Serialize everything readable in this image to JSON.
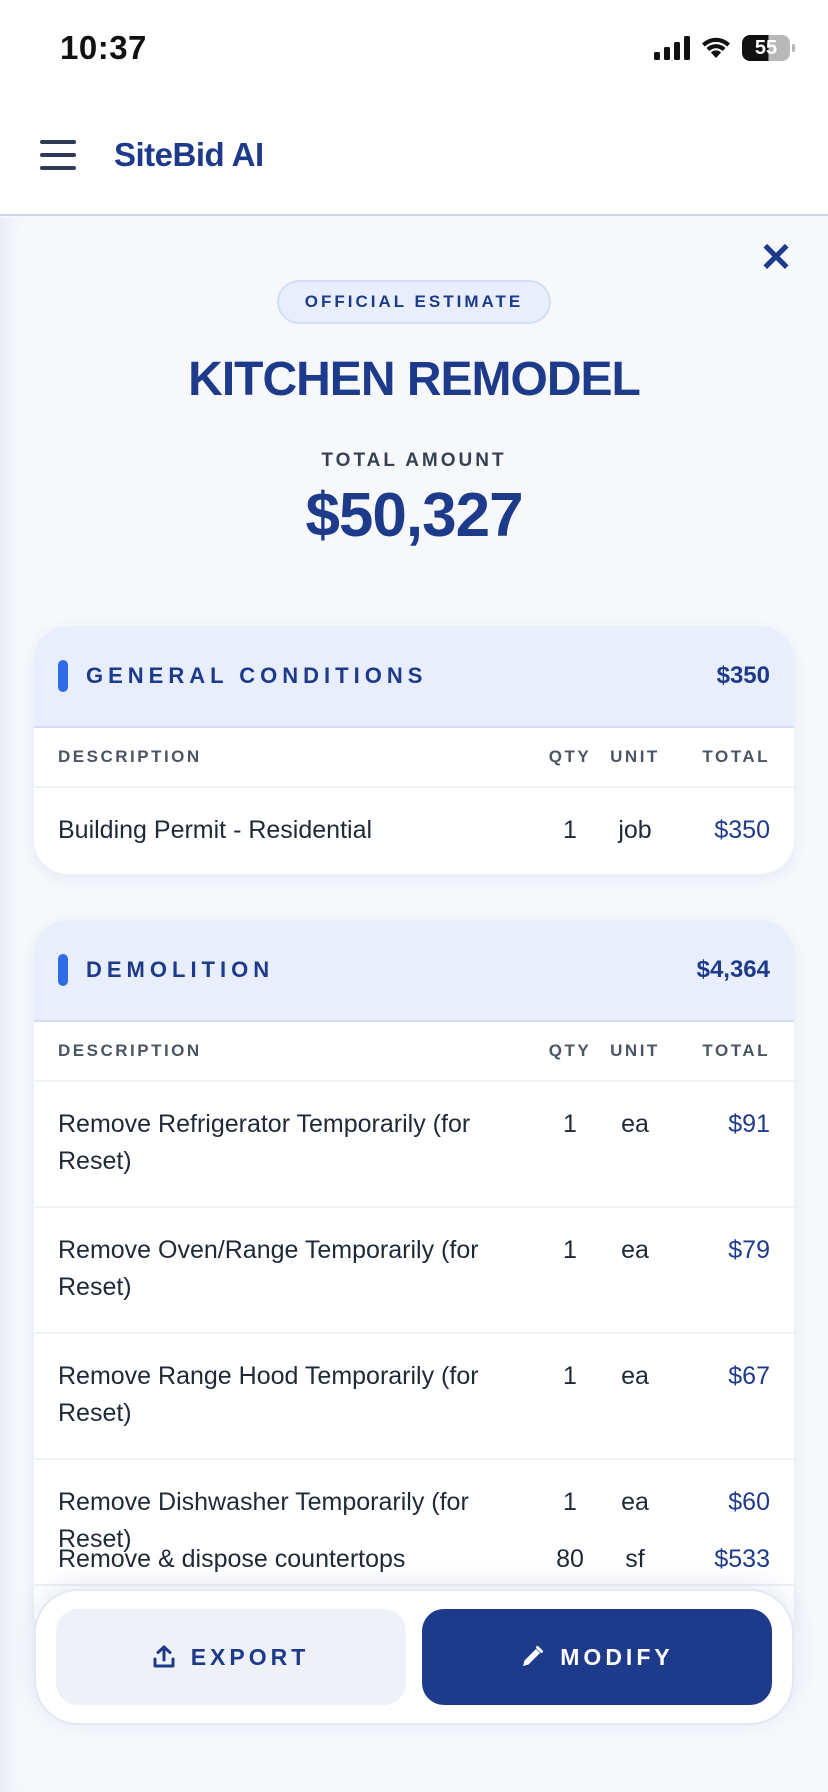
{
  "status_bar": {
    "time": "10:37",
    "battery": "55"
  },
  "header": {
    "brand": "SiteBid AI"
  },
  "estimate": {
    "badge": "OFFICIAL ESTIMATE",
    "project_title": "KITCHEN REMODEL",
    "total_label": "TOTAL AMOUNT",
    "total_amount": "$50,327"
  },
  "columns": {
    "description": "DESCRIPTION",
    "qty": "QTY",
    "unit": "UNIT",
    "total": "TOTAL"
  },
  "sections": [
    {
      "name": "GENERAL CONDITIONS",
      "total": "$350",
      "items": [
        {
          "description": "Building Permit - Residential",
          "qty": "1",
          "unit": "job",
          "total": "$350"
        }
      ]
    },
    {
      "name": "DEMOLITION",
      "total": "$4,364",
      "items": [
        {
          "description": "Remove Refrigerator Temporarily (for Reset)",
          "qty": "1",
          "unit": "ea",
          "total": "$91"
        },
        {
          "description": "Remove Oven/Range Temporarily (for Reset)",
          "qty": "1",
          "unit": "ea",
          "total": "$79"
        },
        {
          "description": "Remove Range Hood Temporarily (for Reset)",
          "qty": "1",
          "unit": "ea",
          "total": "$67"
        },
        {
          "description": "Remove Dishwasher Temporarily (for Reset)",
          "qty": "1",
          "unit": "ea",
          "total": "$60"
        },
        {
          "description": "Remove & dispose countertops",
          "qty": "80",
          "unit": "sf",
          "total": "$533"
        }
      ]
    }
  ],
  "actions": {
    "export_label": "EXPORT",
    "modify_label": "MODIFY"
  },
  "colors": {
    "brand": "#1e3a8a",
    "accent": "#2f6be6",
    "section_header_bg": "#e8eefb"
  },
  "icons": {
    "menu": "hamburger-menu-icon",
    "close": "close-icon",
    "export": "upload-icon",
    "modify": "pencil-icon"
  }
}
